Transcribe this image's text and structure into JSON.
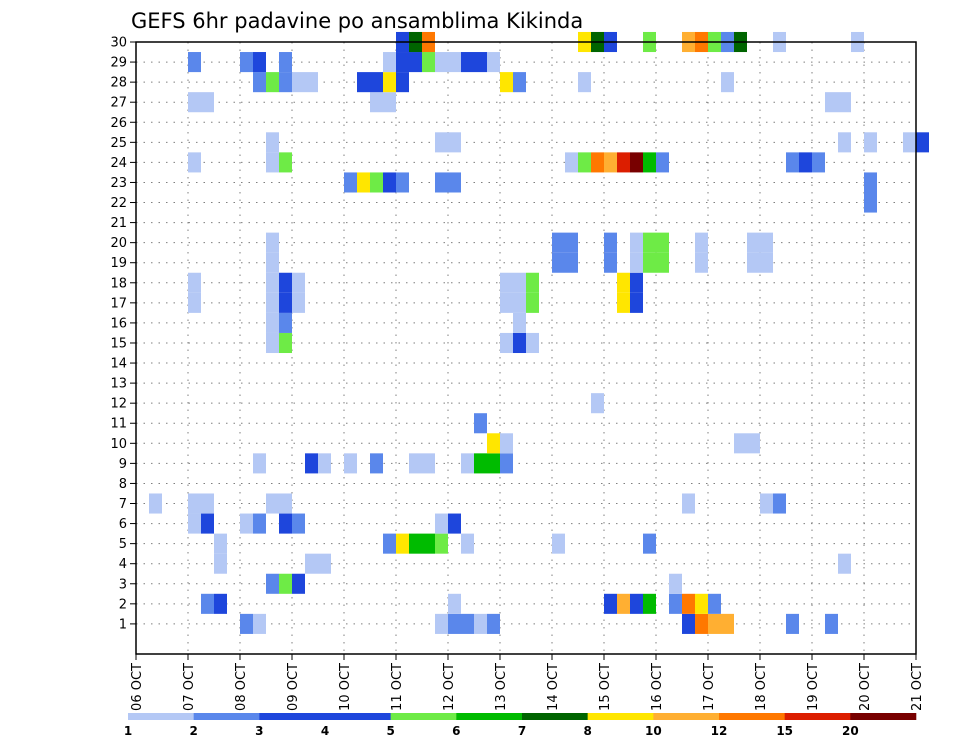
{
  "chart_data": {
    "type": "heatmap",
    "title": "GEFS 6hr padavine po ansamblima Kikinda",
    "xlabel": "",
    "ylabel": "",
    "x_ticks": [
      "06 OCT",
      "07 OCT",
      "08 OCT",
      "09 OCT",
      "10 OCT",
      "11 OCT",
      "12 OCT",
      "13 OCT",
      "14 OCT",
      "15 OCT",
      "16 OCT",
      "17 OCT",
      "18 OCT",
      "19 OCT",
      "20 OCT",
      "21 OCT"
    ],
    "x_step_hours": 6,
    "y_ticks": [
      1,
      2,
      3,
      4,
      5,
      6,
      7,
      8,
      9,
      10,
      11,
      12,
      13,
      14,
      15,
      16,
      17,
      18,
      19,
      20,
      21,
      22,
      23,
      24,
      25,
      26,
      27,
      28,
      29,
      30
    ],
    "ylim": [
      0,
      30
    ],
    "grid": true,
    "legend_position": "bottom",
    "colorbar": {
      "labels": [
        "1",
        "2",
        "3",
        "4",
        "5",
        "6",
        "7",
        "8",
        "10",
        "12",
        "15",
        "20"
      ],
      "colors": [
        "#b4c8f5",
        "#5a87eb",
        "#1e46dc",
        "#1e46dc",
        "#6eeb46",
        "#00bb00",
        "#006400",
        "#ffe600",
        "#ffaf32",
        "#ff7800",
        "#dc1e00",
        "#780000"
      ]
    },
    "member_cells": [
      {
        "member": 1,
        "cells": [
          [
            8,
            2
          ],
          [
            9,
            1
          ],
          [
            23,
            1
          ],
          [
            24,
            2
          ],
          [
            25,
            2
          ],
          [
            26,
            1
          ],
          [
            27,
            2
          ],
          [
            42,
            3
          ],
          [
            43,
            13
          ],
          [
            44,
            11
          ],
          [
            45,
            10
          ],
          [
            50,
            2
          ],
          [
            53,
            2
          ]
        ]
      },
      {
        "member": 2,
        "cells": [
          [
            5,
            2
          ],
          [
            6,
            3
          ],
          [
            24,
            1
          ],
          [
            36,
            3
          ],
          [
            37,
            10
          ],
          [
            38,
            3
          ],
          [
            39,
            6
          ],
          [
            41,
            2
          ],
          [
            42,
            12
          ],
          [
            43,
            8
          ],
          [
            44,
            2
          ]
        ]
      },
      {
        "member": 3,
        "cells": [
          [
            10,
            2
          ],
          [
            11,
            5
          ],
          [
            12,
            3
          ],
          [
            41,
            1
          ]
        ]
      },
      {
        "member": 4,
        "cells": [
          [
            6,
            1
          ],
          [
            13,
            1
          ],
          [
            14,
            1
          ],
          [
            54,
            1
          ]
        ]
      },
      {
        "member": 5,
        "cells": [
          [
            6,
            1
          ],
          [
            19,
            2
          ],
          [
            20,
            9
          ],
          [
            21,
            6
          ],
          [
            22,
            6
          ],
          [
            23,
            5
          ],
          [
            25,
            1
          ],
          [
            32,
            1
          ],
          [
            39,
            2
          ]
        ]
      },
      {
        "member": 6,
        "cells": [
          [
            4,
            1
          ],
          [
            5,
            3
          ],
          [
            8,
            1
          ],
          [
            9,
            2
          ],
          [
            11,
            3
          ],
          [
            12,
            2
          ],
          [
            23,
            1
          ],
          [
            24,
            3
          ]
        ]
      },
      {
        "member": 7,
        "cells": [
          [
            1,
            1
          ],
          [
            4,
            1
          ],
          [
            5,
            1
          ],
          [
            10,
            1
          ],
          [
            11,
            1
          ],
          [
            42,
            1
          ],
          [
            48,
            1
          ],
          [
            49,
            2
          ]
        ]
      },
      {
        "member": 9,
        "cells": [
          [
            9,
            1
          ],
          [
            13,
            3
          ],
          [
            14,
            1
          ],
          [
            16,
            1
          ],
          [
            18,
            2
          ],
          [
            21,
            1
          ],
          [
            22,
            1
          ],
          [
            25,
            1
          ],
          [
            26,
            6
          ],
          [
            27,
            6
          ],
          [
            28,
            2
          ]
        ]
      },
      {
        "member": 10,
        "cells": [
          [
            27,
            8
          ],
          [
            28,
            1
          ],
          [
            46,
            1
          ],
          [
            47,
            1
          ]
        ]
      },
      {
        "member": 11,
        "cells": [
          [
            26,
            2
          ]
        ]
      },
      {
        "member": 12,
        "cells": [
          [
            35,
            1
          ]
        ]
      },
      {
        "member": 15,
        "cells": [
          [
            10,
            1
          ],
          [
            11,
            5
          ],
          [
            28,
            1
          ],
          [
            29,
            3
          ],
          [
            30,
            1
          ]
        ]
      },
      {
        "member": 16,
        "cells": [
          [
            10,
            1
          ],
          [
            11,
            2
          ],
          [
            29,
            1
          ]
        ]
      },
      {
        "member": 17,
        "cells": [
          [
            4,
            1
          ],
          [
            10,
            1
          ],
          [
            11,
            3
          ],
          [
            12,
            1
          ],
          [
            28,
            1
          ],
          [
            29,
            1
          ],
          [
            30,
            5
          ],
          [
            37,
            8
          ],
          [
            38,
            3
          ]
        ]
      },
      {
        "member": 18,
        "cells": [
          [
            4,
            1
          ],
          [
            10,
            1
          ],
          [
            11,
            3
          ],
          [
            12,
            1
          ],
          [
            28,
            1
          ],
          [
            29,
            1
          ],
          [
            30,
            5
          ],
          [
            37,
            8
          ],
          [
            38,
            3
          ]
        ]
      },
      {
        "member": 19,
        "cells": [
          [
            10,
            1
          ],
          [
            32,
            2
          ],
          [
            33,
            2
          ],
          [
            36,
            2
          ],
          [
            38,
            1
          ],
          [
            39,
            5
          ],
          [
            40,
            5
          ],
          [
            43,
            1
          ],
          [
            47,
            1
          ],
          [
            48,
            1
          ]
        ]
      },
      {
        "member": 20,
        "cells": [
          [
            10,
            1
          ],
          [
            32,
            2
          ],
          [
            33,
            2
          ],
          [
            36,
            2
          ],
          [
            38,
            1
          ],
          [
            39,
            5
          ],
          [
            40,
            5
          ],
          [
            43,
            1
          ],
          [
            47,
            1
          ],
          [
            48,
            1
          ]
        ]
      },
      {
        "member": 22,
        "cells": [
          [
            56,
            2
          ]
        ]
      },
      {
        "member": 23,
        "cells": [
          [
            16,
            2
          ],
          [
            17,
            8
          ],
          [
            18,
            5
          ],
          [
            19,
            3
          ],
          [
            20,
            2
          ],
          [
            23,
            2
          ],
          [
            24,
            2
          ],
          [
            56,
            2
          ]
        ]
      },
      {
        "member": 24,
        "cells": [
          [
            4,
            1
          ],
          [
            10,
            1
          ],
          [
            11,
            5
          ],
          [
            33,
            1
          ],
          [
            34,
            5
          ],
          [
            35,
            12
          ],
          [
            36,
            10
          ],
          [
            37,
            15
          ],
          [
            38,
            20
          ],
          [
            39,
            6
          ],
          [
            40,
            2
          ],
          [
            50,
            2
          ],
          [
            51,
            3
          ],
          [
            52,
            2
          ]
        ]
      },
      {
        "member": 25,
        "cells": [
          [
            10,
            1
          ],
          [
            23,
            1
          ],
          [
            24,
            1
          ],
          [
            54,
            1
          ],
          [
            56,
            1
          ],
          [
            59,
            1
          ],
          [
            60,
            3
          ]
        ]
      },
      {
        "member": 27,
        "cells": [
          [
            4,
            1
          ],
          [
            5,
            1
          ],
          [
            18,
            1
          ],
          [
            19,
            1
          ],
          [
            53,
            1
          ],
          [
            54,
            1
          ]
        ]
      },
      {
        "member": 28,
        "cells": [
          [
            9,
            2
          ],
          [
            10,
            5
          ],
          [
            11,
            2
          ],
          [
            12,
            1
          ],
          [
            13,
            1
          ],
          [
            17,
            3
          ],
          [
            18,
            3
          ],
          [
            19,
            8
          ],
          [
            20,
            3
          ],
          [
            28,
            8
          ],
          [
            29,
            2
          ],
          [
            34,
            1
          ],
          [
            45,
            1
          ]
        ]
      },
      {
        "member": 29,
        "cells": [
          [
            4,
            2
          ],
          [
            8,
            2
          ],
          [
            9,
            3
          ],
          [
            11,
            2
          ],
          [
            19,
            1
          ],
          [
            20,
            3
          ],
          [
            21,
            3
          ],
          [
            22,
            5
          ],
          [
            23,
            1
          ],
          [
            24,
            1
          ],
          [
            25,
            3
          ],
          [
            26,
            3
          ],
          [
            27,
            1
          ]
        ]
      },
      {
        "member": 30,
        "cells": [
          [
            20,
            3
          ],
          [
            21,
            7
          ],
          [
            22,
            12
          ],
          [
            34,
            8
          ],
          [
            35,
            7
          ],
          [
            36,
            3
          ],
          [
            39,
            5
          ],
          [
            42,
            10
          ],
          [
            43,
            12
          ],
          [
            44,
            5
          ],
          [
            45,
            2
          ],
          [
            46,
            7
          ],
          [
            49,
            1
          ],
          [
            55,
            1
          ]
        ]
      }
    ]
  }
}
